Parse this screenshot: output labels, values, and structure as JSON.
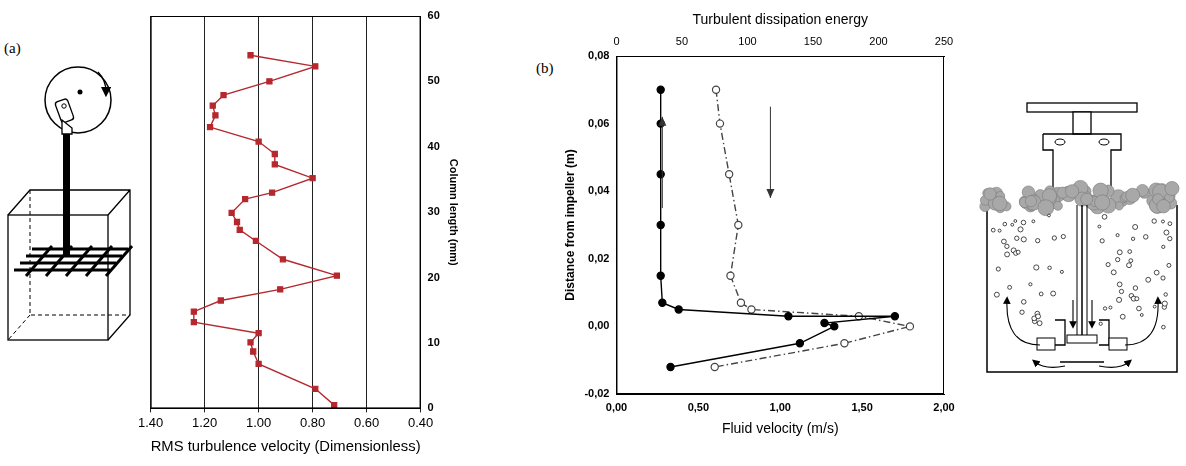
{
  "chart_data": [
    {
      "type": "line",
      "panel_label": "(a)",
      "x_label": "RMS turbulence velocity (Dimensionless)",
      "y_label": "Column length (mm)",
      "xlim": [
        1.4,
        0.4
      ],
      "xticks": [
        {
          "value": 1.4,
          "label": "1.40"
        },
        {
          "value": 1.2,
          "label": "1.20"
        },
        {
          "value": 1.0,
          "label": "1.00"
        },
        {
          "value": 0.8,
          "label": "0.80"
        },
        {
          "value": 0.6,
          "label": "0.60"
        },
        {
          "value": 0.4,
          "label": "0.40"
        }
      ],
      "ylim": [
        0,
        60
      ],
      "yticks": [
        0,
        10,
        20,
        30,
        40,
        50,
        60
      ],
      "grid": "x",
      "series": [
        {
          "color": "#b5282e",
          "marker": "square",
          "line_style": "solid",
          "x": [
            1.03,
            0.79,
            0.96,
            1.13,
            1.17,
            1.16,
            1.18,
            1.0,
            0.94,
            0.94,
            0.8,
            0.95,
            1.05,
            1.1,
            1.08,
            1.07,
            1.01,
            0.91,
            0.71,
            0.92,
            1.14,
            1.24,
            1.24,
            1.0,
            1.03,
            1.02,
            1.0,
            0.79,
            0.72
          ],
          "values": [
            54.0,
            52.3,
            50.0,
            47.9,
            46.3,
            44.8,
            43.0,
            40.8,
            38.9,
            37.3,
            35.2,
            33.0,
            32.0,
            29.9,
            28.5,
            27.3,
            25.6,
            22.8,
            20.3,
            18.2,
            16.5,
            14.8,
            13.2,
            11.5,
            10.1,
            8.7,
            6.8,
            3.0,
            0.5
          ]
        }
      ]
    },
    {
      "type": "line",
      "panel_label": "(b)",
      "x_label": "Fluid velocity (m/s)",
      "x2_label": "Turbulent dissipation energy",
      "y_label": "Distance from impeller (m)",
      "xlim": [
        0,
        2
      ],
      "xticks": [
        {
          "value": 0,
          "label": "0,00"
        },
        {
          "value": 0.5,
          "label": "0,50"
        },
        {
          "value": 1,
          "label": "1,00"
        },
        {
          "value": 1.5,
          "label": "1,50"
        },
        {
          "value": 2,
          "label": "2,00"
        }
      ],
      "x2lim": [
        0,
        250
      ],
      "x2ticks": [
        0,
        50,
        100,
        150,
        200,
        250
      ],
      "ylim": [
        -0.02,
        0.08
      ],
      "yticks": [
        {
          "value": -0.02,
          "label": "-0,02"
        },
        {
          "value": 0,
          "label": "0,00"
        },
        {
          "value": 0.02,
          "label": "0,02"
        },
        {
          "value": 0.04,
          "label": "0,04"
        },
        {
          "value": 0.06,
          "label": "0,06"
        },
        {
          "value": 0.08,
          "label": "0,08"
        }
      ],
      "grid": false,
      "series": [
        {
          "color": "#000000",
          "marker": "circle",
          "line_style": "solid",
          "x": [
            0.27,
            0.27,
            0.27,
            0.27,
            0.27,
            0.28,
            0.38,
            1.05,
            1.7,
            1.27,
            1.33,
            1.12,
            0.33
          ],
          "values": [
            0.07,
            0.06,
            0.045,
            0.03,
            0.015,
            0.007,
            0.005,
            0.003,
            0.003,
            0.001,
            0.0,
            -0.005,
            -0.012
          ]
        },
        {
          "color": "#444444",
          "marker": "open_circle",
          "line_style": "dashdot",
          "axis": "x2",
          "x": [
            76,
            79,
            86,
            93,
            87,
            95,
            103,
            185,
            224,
            174,
            75
          ],
          "values": [
            0.07,
            0.06,
            0.045,
            0.03,
            0.015,
            0.007,
            0.005,
            0.003,
            0.0,
            -0.005,
            -0.012
          ]
        }
      ]
    }
  ]
}
